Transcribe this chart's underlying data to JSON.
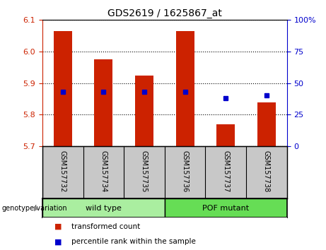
{
  "title": "GDS2619 / 1625867_at",
  "samples": [
    "GSM157732",
    "GSM157734",
    "GSM157735",
    "GSM157736",
    "GSM157737",
    "GSM157738"
  ],
  "red_bar_values": [
    6.065,
    5.975,
    5.925,
    6.065,
    5.77,
    5.84
  ],
  "blue_marker_values": [
    5.872,
    5.872,
    5.872,
    5.872,
    5.852,
    5.862
  ],
  "bar_baseline": 5.7,
  "ylim_left": [
    5.7,
    6.1
  ],
  "ylim_right": [
    0,
    100
  ],
  "yticks_left": [
    5.7,
    5.8,
    5.9,
    6.0,
    6.1
  ],
  "yticks_right": [
    0,
    25,
    50,
    75,
    100
  ],
  "ytick_labels_right": [
    "0",
    "25",
    "50",
    "75",
    "100%"
  ],
  "bar_color": "#cc2200",
  "marker_color": "#0000cc",
  "grid_color": "#000000",
  "groups": [
    {
      "label": "wild type",
      "indices": [
        0,
        1,
        2
      ],
      "color": "#aaeea0"
    },
    {
      "label": "POF mutant",
      "indices": [
        3,
        4,
        5
      ],
      "color": "#66dd55"
    }
  ],
  "group_label_prefix": "genotype/variation",
  "legend_items": [
    {
      "label": "transformed count",
      "color": "#cc2200"
    },
    {
      "label": "percentile rank within the sample",
      "color": "#0000cc"
    }
  ],
  "bar_width": 0.45,
  "left_axis_color": "#cc2200",
  "right_axis_color": "#0000cc",
  "background_label": "#c8c8c8"
}
